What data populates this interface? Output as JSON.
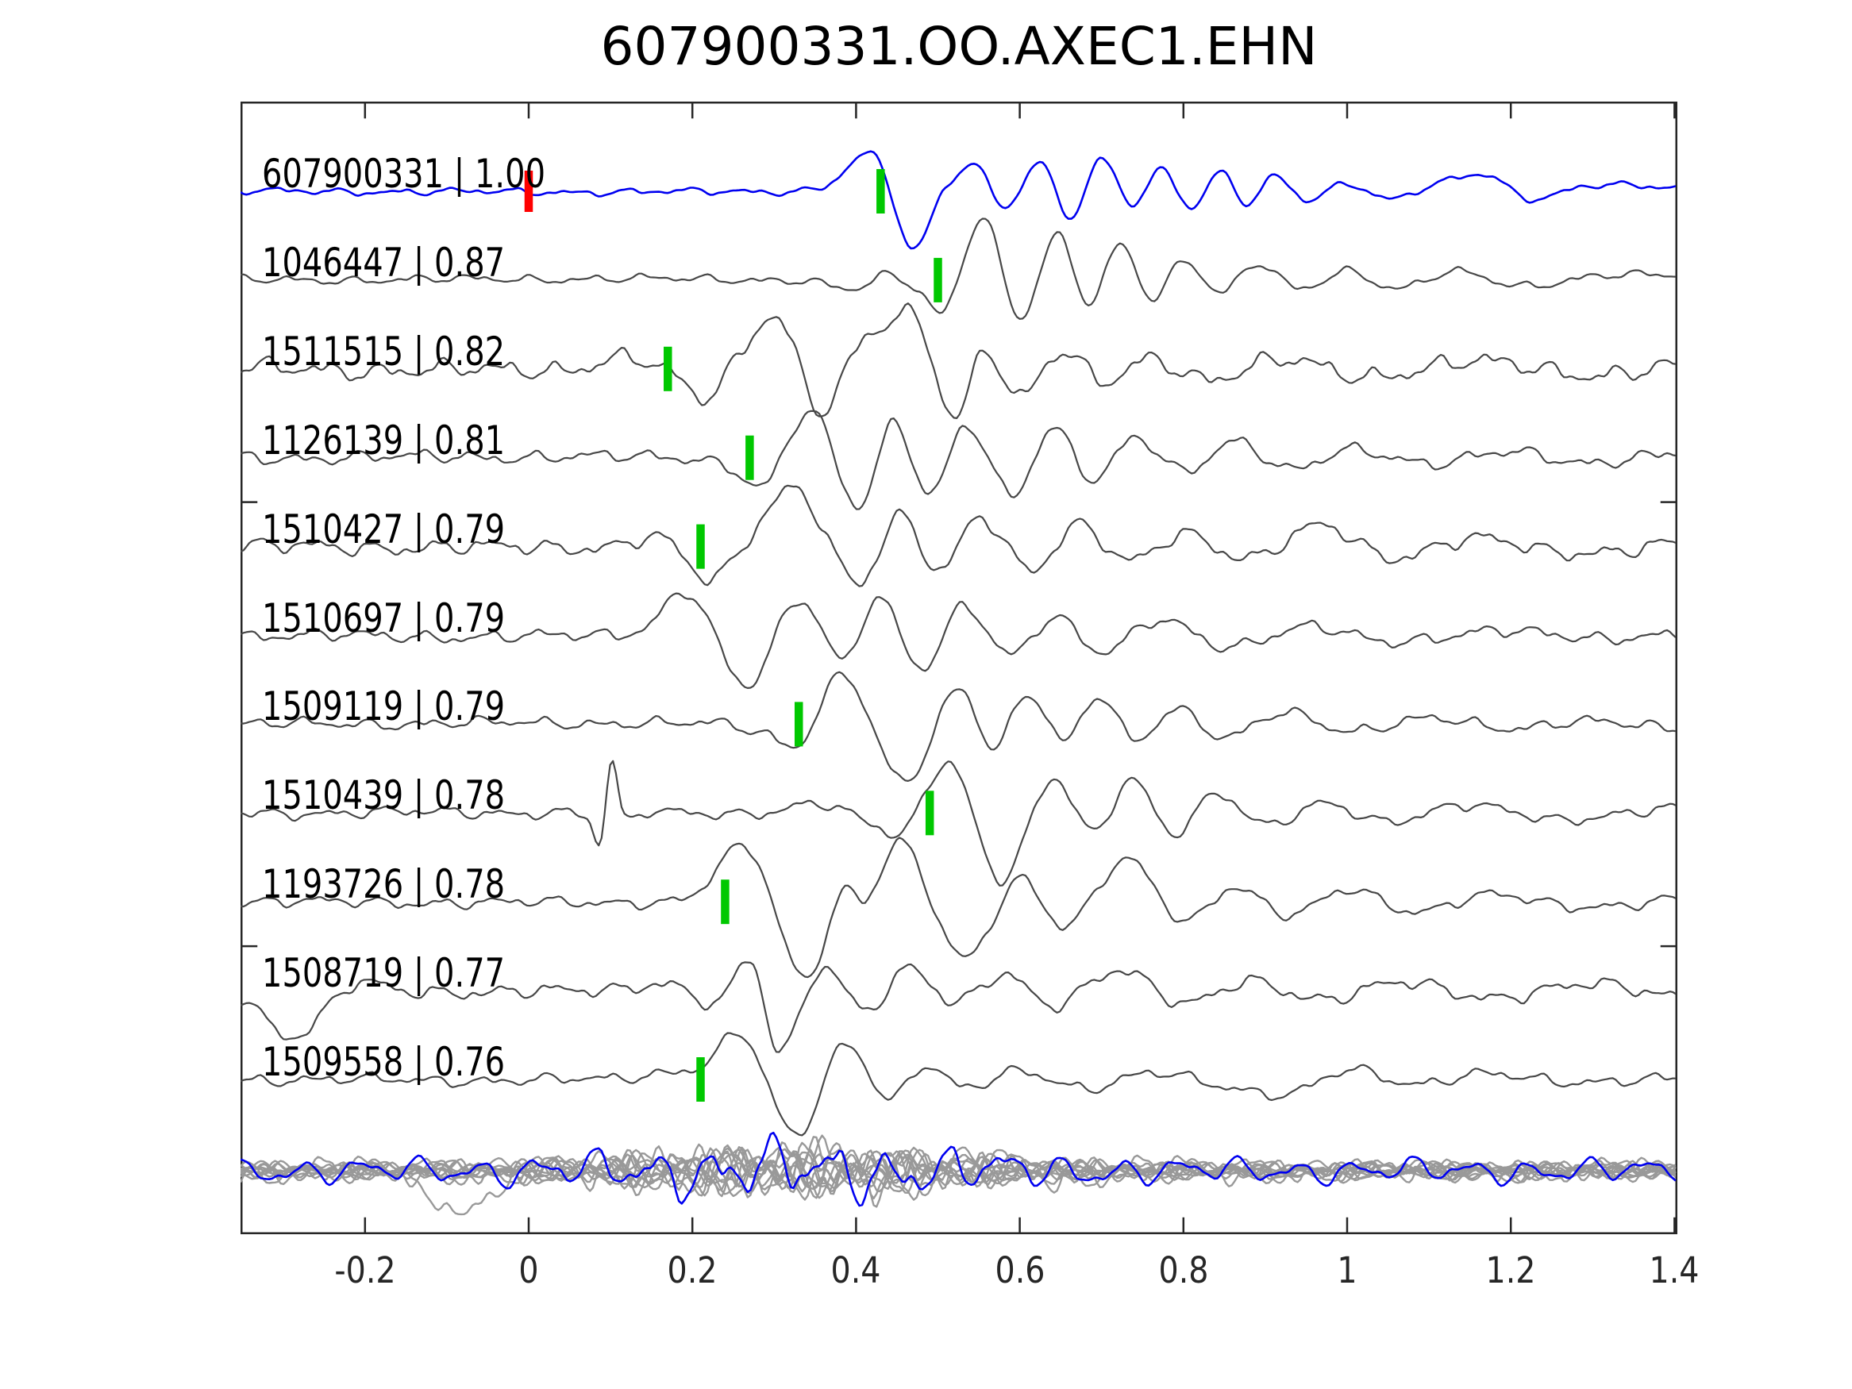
{
  "chart_data": {
    "type": "line",
    "title": "607900331.OO.AXEC1.EHN",
    "x_axis": {
      "range": [
        -0.352,
        1.4035
      ],
      "ticks": [
        -0.2,
        0,
        0.2,
        0.4,
        0.6,
        0.8,
        1,
        1.2,
        1.4
      ],
      "tick_labels": [
        "-0.2",
        "0",
        "0.2",
        "0.4",
        "0.6",
        "0.8",
        "1",
        "1.2",
        "1.4"
      ]
    },
    "y_axis": {
      "tick_rows": [
        3.5,
        8.5
      ],
      "tick_labels": []
    },
    "legend": null,
    "grid": false,
    "colors": {
      "reference": "#0000f0",
      "match": "#474747",
      "stack": "#999999",
      "pick_green": "#00c800",
      "pick_red": "#ff0000",
      "axis": "#262626",
      "text": "#000000"
    },
    "traces": [
      {
        "id": "607900331",
        "corr": "1.00",
        "label": "607900331 | 1.00",
        "role": "reference",
        "pick_green": 0.43,
        "pick_red": 0.0,
        "noise_amp": 5,
        "seed": 11,
        "keypoints": [
          [
            -0.35,
            0
          ],
          [
            0.28,
            0
          ],
          [
            0.36,
            6
          ],
          [
            0.425,
            42
          ],
          [
            0.468,
            -75
          ],
          [
            0.507,
            2
          ],
          [
            0.545,
            33
          ],
          [
            0.583,
            -18
          ],
          [
            0.625,
            35
          ],
          [
            0.663,
            -33
          ],
          [
            0.7,
            40
          ],
          [
            0.737,
            -16
          ],
          [
            0.775,
            28
          ],
          [
            0.81,
            -20
          ],
          [
            0.845,
            25
          ],
          [
            0.878,
            -15
          ],
          [
            0.912,
            18
          ],
          [
            0.95,
            -12
          ],
          [
            1.0,
            10
          ],
          [
            1.05,
            -9
          ],
          [
            1.1,
            7
          ],
          [
            1.17,
            20
          ],
          [
            1.22,
            -10
          ],
          [
            1.3,
            9
          ],
          [
            1.4,
            4
          ]
        ]
      },
      {
        "id": "1046447",
        "corr": "0.87",
        "label": "1046447 | 0.87",
        "role": "match",
        "pick_green": 0.5,
        "pick_red": null,
        "noise_amp": 6,
        "seed": 22,
        "keypoints": [
          [
            -0.35,
            0
          ],
          [
            0.33,
            0
          ],
          [
            0.4,
            -12
          ],
          [
            0.44,
            6
          ],
          [
            0.475,
            -12
          ],
          [
            0.508,
            -38
          ],
          [
            0.555,
            80
          ],
          [
            0.6,
            -48
          ],
          [
            0.645,
            55
          ],
          [
            0.685,
            -30
          ],
          [
            0.722,
            45
          ],
          [
            0.762,
            -22
          ],
          [
            0.8,
            26
          ],
          [
            0.845,
            -16
          ],
          [
            0.89,
            20
          ],
          [
            0.94,
            -12
          ],
          [
            1.0,
            12
          ],
          [
            1.06,
            -10
          ],
          [
            1.13,
            10
          ],
          [
            1.21,
            -8
          ],
          [
            1.31,
            7
          ],
          [
            1.4,
            5
          ]
        ]
      },
      {
        "id": "1511515",
        "corr": "0.82",
        "label": "1511515 | 0.82",
        "role": "match",
        "pick_green": 0.17,
        "pick_red": null,
        "noise_amp": 13,
        "seed": 33,
        "keypoints": [
          [
            -0.35,
            0
          ],
          [
            0.04,
            0
          ],
          [
            0.12,
            14
          ],
          [
            0.172,
            -6
          ],
          [
            0.212,
            -38
          ],
          [
            0.252,
            8
          ],
          [
            0.302,
            70
          ],
          [
            0.357,
            -52
          ],
          [
            0.398,
            18
          ],
          [
            0.436,
            55
          ],
          [
            0.476,
            58
          ],
          [
            0.52,
            -60
          ],
          [
            0.558,
            28
          ],
          [
            0.598,
            -36
          ],
          [
            0.65,
            20
          ],
          [
            0.7,
            -18
          ],
          [
            0.76,
            14
          ],
          [
            0.83,
            -12
          ],
          [
            0.92,
            10
          ],
          [
            1.02,
            -8
          ],
          [
            1.15,
            8
          ],
          [
            1.3,
            -6
          ],
          [
            1.4,
            4
          ]
        ]
      },
      {
        "id": "1126139",
        "corr": "0.81",
        "label": "1126139 | 0.81",
        "role": "match",
        "pick_green": 0.27,
        "pick_red": null,
        "noise_amp": 9,
        "seed": 44,
        "keypoints": [
          [
            -0.35,
            0
          ],
          [
            0.19,
            0
          ],
          [
            0.245,
            -10
          ],
          [
            0.288,
            -35
          ],
          [
            0.345,
            58
          ],
          [
            0.402,
            -62
          ],
          [
            0.447,
            45
          ],
          [
            0.49,
            -45
          ],
          [
            0.535,
            42
          ],
          [
            0.59,
            -50
          ],
          [
            0.64,
            35
          ],
          [
            0.69,
            -26
          ],
          [
            0.74,
            28
          ],
          [
            0.8,
            -18
          ],
          [
            0.862,
            18
          ],
          [
            0.93,
            -14
          ],
          [
            1.0,
            12
          ],
          [
            1.1,
            -10
          ],
          [
            1.2,
            10
          ],
          [
            1.3,
            -8
          ],
          [
            1.4,
            6
          ]
        ]
      },
      {
        "id": "1510427",
        "corr": "0.79",
        "label": "1510427 | 0.79",
        "role": "match",
        "pick_green": 0.21,
        "pick_red": null,
        "noise_amp": 11,
        "seed": 55,
        "keypoints": [
          [
            -0.35,
            0
          ],
          [
            0.09,
            0
          ],
          [
            0.162,
            10
          ],
          [
            0.226,
            -42
          ],
          [
            0.325,
            75
          ],
          [
            0.402,
            -48
          ],
          [
            0.452,
            35
          ],
          [
            0.502,
            -30
          ],
          [
            0.552,
            40
          ],
          [
            0.612,
            -28
          ],
          [
            0.672,
            25
          ],
          [
            0.732,
            -20
          ],
          [
            0.8,
            18
          ],
          [
            0.88,
            -15
          ],
          [
            0.97,
            25
          ],
          [
            1.05,
            -12
          ],
          [
            1.15,
            10
          ],
          [
            1.26,
            -8
          ],
          [
            1.4,
            5
          ]
        ]
      },
      {
        "id": "1510697",
        "corr": "0.79",
        "label": "1510697 | 0.79",
        "role": "match",
        "pick_green": null,
        "pick_red": null,
        "noise_amp": 9,
        "seed": 66,
        "keypoints": [
          [
            -0.35,
            0
          ],
          [
            0.09,
            0
          ],
          [
            0.143,
            12
          ],
          [
            0.196,
            55
          ],
          [
            0.266,
            -65
          ],
          [
            0.33,
            45
          ],
          [
            0.385,
            -30
          ],
          [
            0.426,
            50
          ],
          [
            0.48,
            -42
          ],
          [
            0.532,
            35
          ],
          [
            0.586,
            -25
          ],
          [
            0.642,
            25
          ],
          [
            0.7,
            -20
          ],
          [
            0.77,
            18
          ],
          [
            0.85,
            -14
          ],
          [
            0.95,
            12
          ],
          [
            1.05,
            -10
          ],
          [
            1.18,
            8
          ],
          [
            1.3,
            -6
          ],
          [
            1.4,
            4
          ]
        ]
      },
      {
        "id": "1509119",
        "corr": "0.79",
        "label": "1509119 | 0.79",
        "role": "match",
        "pick_green": 0.33,
        "pick_red": null,
        "noise_amp": 8,
        "seed": 77,
        "keypoints": [
          [
            -0.35,
            0
          ],
          [
            0.23,
            0
          ],
          [
            0.29,
            -12
          ],
          [
            0.329,
            -25
          ],
          [
            0.386,
            62
          ],
          [
            0.458,
            -75
          ],
          [
            0.525,
            45
          ],
          [
            0.568,
            -28
          ],
          [
            0.61,
            40
          ],
          [
            0.655,
            -22
          ],
          [
            0.696,
            35
          ],
          [
            0.74,
            -22
          ],
          [
            0.79,
            20
          ],
          [
            0.85,
            -15
          ],
          [
            0.92,
            14
          ],
          [
            1.0,
            -10
          ],
          [
            1.1,
            10
          ],
          [
            1.2,
            -8
          ],
          [
            1.3,
            6
          ],
          [
            1.4,
            -6
          ]
        ]
      },
      {
        "id": "1510439",
        "corr": "0.78",
        "label": "1510439 | 0.78",
        "role": "match",
        "pick_green": 0.49,
        "pick_red": null,
        "noise_amp": 8,
        "seed": 88,
        "keypoints": [
          [
            -0.35,
            0
          ],
          [
            0.04,
            0
          ],
          [
            0.072,
            -6
          ],
          [
            0.087,
            -40
          ],
          [
            0.101,
            62
          ],
          [
            0.116,
            -6
          ],
          [
            0.145,
            2
          ],
          [
            0.29,
            0
          ],
          [
            0.36,
            10
          ],
          [
            0.42,
            -14
          ],
          [
            0.458,
            -22
          ],
          [
            0.515,
            65
          ],
          [
            0.576,
            -85
          ],
          [
            0.64,
            42
          ],
          [
            0.69,
            -24
          ],
          [
            0.736,
            45
          ],
          [
            0.786,
            -25
          ],
          [
            0.84,
            22
          ],
          [
            0.9,
            -16
          ],
          [
            0.97,
            14
          ],
          [
            1.05,
            -12
          ],
          [
            1.15,
            10
          ],
          [
            1.27,
            -8
          ],
          [
            1.4,
            6
          ]
        ]
      },
      {
        "id": "1193726",
        "corr": "0.78",
        "label": "1193726 | 0.78",
        "role": "match",
        "pick_green": 0.24,
        "pick_red": null,
        "noise_amp": 8,
        "seed": 99,
        "keypoints": [
          [
            -0.35,
            0
          ],
          [
            0.13,
            0
          ],
          [
            0.2,
            8
          ],
          [
            0.27,
            65
          ],
          [
            0.335,
            -95
          ],
          [
            0.385,
            15
          ],
          [
            0.413,
            4
          ],
          [
            0.455,
            75
          ],
          [
            0.53,
            -72
          ],
          [
            0.6,
            30
          ],
          [
            0.655,
            -30
          ],
          [
            0.73,
            52
          ],
          [
            0.8,
            -25
          ],
          [
            0.86,
            20
          ],
          [
            0.93,
            -16
          ],
          [
            1.0,
            14
          ],
          [
            1.08,
            -12
          ],
          [
            1.17,
            10
          ],
          [
            1.28,
            -8
          ],
          [
            1.4,
            6
          ]
        ]
      },
      {
        "id": "1508719",
        "corr": "0.77",
        "label": "1508719 | 0.77",
        "role": "match",
        "pick_green": null,
        "pick_red": null,
        "noise_amp": 10,
        "seed": 110,
        "keypoints": [
          [
            -0.35,
            -6
          ],
          [
            -0.285,
            -58
          ],
          [
            -0.215,
            6
          ],
          [
            -0.15,
            0
          ],
          [
            0.09,
            0
          ],
          [
            0.17,
            10
          ],
          [
            0.232,
            -15
          ],
          [
            0.272,
            35
          ],
          [
            0.307,
            -80
          ],
          [
            0.357,
            30
          ],
          [
            0.41,
            -22
          ],
          [
            0.466,
            28
          ],
          [
            0.52,
            -18
          ],
          [
            0.58,
            20
          ],
          [
            0.64,
            -16
          ],
          [
            0.72,
            26
          ],
          [
            0.8,
            -18
          ],
          [
            0.88,
            14
          ],
          [
            0.97,
            -12
          ],
          [
            1.07,
            10
          ],
          [
            1.18,
            -8
          ],
          [
            1.3,
            7
          ],
          [
            1.4,
            -5
          ]
        ]
      },
      {
        "id": "1509558",
        "corr": "0.76",
        "label": "1509558 | 0.76",
        "role": "match",
        "pick_green": 0.21,
        "pick_red": null,
        "noise_amp": 8,
        "seed": 121,
        "keypoints": [
          [
            -0.35,
            0
          ],
          [
            0.09,
            0
          ],
          [
            0.158,
            8
          ],
          [
            0.214,
            20
          ],
          [
            0.262,
            56
          ],
          [
            0.326,
            -72
          ],
          [
            0.386,
            45
          ],
          [
            0.44,
            -24
          ],
          [
            0.482,
            18
          ],
          [
            0.532,
            -12
          ],
          [
            0.6,
            10
          ],
          [
            0.68,
            -10
          ],
          [
            0.76,
            8
          ],
          [
            0.85,
            -10
          ],
          [
            0.93,
            -16
          ],
          [
            1.0,
            12
          ],
          [
            1.08,
            -8
          ],
          [
            1.17,
            10
          ],
          [
            1.28,
            -6
          ],
          [
            1.4,
            4
          ]
        ]
      }
    ],
    "stack": {
      "description": "overlay of all matched traces at bottom row",
      "gray_seeds": [
        3,
        7,
        12,
        19,
        23,
        31,
        37,
        41,
        47,
        53,
        59,
        67
      ],
      "noise_amp": 9,
      "burst_amp": 24,
      "dip_trace_index": 2,
      "dip": {
        "t": -0.085,
        "amp": -52,
        "w": 0.05
      },
      "blue": {
        "seed": 141,
        "noise_amp": 11,
        "burst_amp": 26
      },
      "envelope": {
        "center": 0.33,
        "width": 0.26,
        "floor": 0.25
      }
    }
  }
}
